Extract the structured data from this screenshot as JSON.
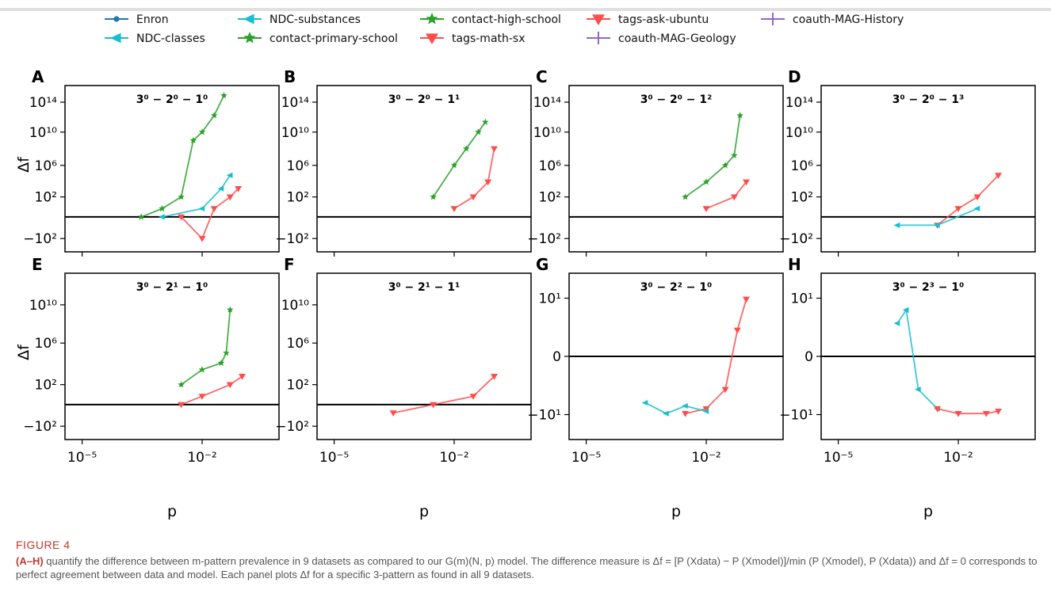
{
  "figure": {
    "label": "FIGURE 4",
    "caption_lead": "(A–H)",
    "caption_text": "quantify the difference between m-pattern prevalence in 9 datasets as compared to our G(m)(N, p) model. The difference measure is Δf = [P (Xdata) − P (Xmodel)]/min (P (Xmodel), P (Xdata)) and Δf = 0 corresponds to perfect agreement between data and model. Each panel plots Δf for a specific 3-pattern as found in all 9 datasets."
  },
  "legend": [
    {
      "name": "Enron",
      "color": "#1f77b4",
      "marker": "circle"
    },
    {
      "name": "NDC-classes",
      "color": "#17becf",
      "marker": "triangle-left"
    },
    {
      "name": "NDC-substances",
      "color": "#17becf",
      "marker": "triangle-left"
    },
    {
      "name": "contact-primary-school",
      "color": "#2ca02c",
      "marker": "star"
    },
    {
      "name": "contact-high-school",
      "color": "#2ca02c",
      "marker": "star"
    },
    {
      "name": "tags-math-sx",
      "color": "#ff4d4d",
      "marker": "triangle-down"
    },
    {
      "name": "tags-ask-ubuntu",
      "color": "#ff4d4d",
      "marker": "triangle-down"
    },
    {
      "name": "coauth-MAG-Geology",
      "color": "#9467bd",
      "marker": "plus"
    },
    {
      "name": "coauth-MAG-History",
      "color": "#9467bd",
      "marker": "plus"
    }
  ],
  "axis_labels": {
    "x": "p",
    "y": "Δf"
  },
  "chart_data": [
    {
      "type": "line",
      "panel": "A",
      "pattern": "3⁰ − 2⁰ − 1⁰",
      "y_scale": "symlog",
      "yticks": [
        "10¹⁴",
        "10¹⁰",
        "10⁶",
        "10²",
        "−10²"
      ],
      "xticks": [],
      "series": [
        {
          "name": "contact-high-school",
          "x": [
            0.0003,
            0.001,
            0.003,
            0.006,
            0.01,
            0.02,
            0.035
          ],
          "y": [
            "~0",
            "1e1",
            "1e2",
            "1e9",
            "1e10",
            "1e12",
            "1e15"
          ]
        },
        {
          "name": "tags-ask-ubuntu",
          "x": [
            0.003,
            0.01,
            0.02,
            0.05,
            0.08
          ],
          "y": [
            "~0",
            "-1e2",
            "1e1",
            "1e2",
            "1e3"
          ]
        },
        {
          "name": "NDC-substances",
          "x": [
            0.001,
            0.01,
            0.03,
            0.05
          ],
          "y": [
            "~0",
            "1e1",
            "1e3",
            "1e5"
          ]
        }
      ]
    },
    {
      "type": "line",
      "panel": "B",
      "pattern": "3⁰ − 2⁰ − 1¹",
      "y_scale": "symlog",
      "yticks": [
        "10¹⁴",
        "10¹⁰",
        "10⁶",
        "10²",
        "−10²"
      ],
      "xticks": [],
      "series": [
        {
          "name": "contact-high-school",
          "x": [
            0.003,
            0.01,
            0.02,
            0.04,
            0.06
          ],
          "y": [
            "1e2",
            "1e6",
            "1e8",
            "1e10",
            "1e11"
          ]
        },
        {
          "name": "tags-ask-ubuntu",
          "x": [
            0.01,
            0.03,
            0.07,
            0.1
          ],
          "y": [
            "1e1",
            "1e2",
            "1e4",
            "1e8"
          ]
        }
      ]
    },
    {
      "type": "line",
      "panel": "C",
      "pattern": "3⁰ − 2⁰ − 1²",
      "y_scale": "symlog",
      "yticks": [
        "10¹⁴",
        "10¹⁰",
        "10⁶",
        "10²",
        "−10²"
      ],
      "xticks": [],
      "series": [
        {
          "name": "contact-high-school",
          "x": [
            0.003,
            0.01,
            0.03,
            0.05,
            0.07
          ],
          "y": [
            "1e2",
            "1e4",
            "1e6",
            "1e7",
            "1e12"
          ]
        },
        {
          "name": "tags-ask-ubuntu",
          "x": [
            0.01,
            0.05,
            0.1
          ],
          "y": [
            "1e1",
            "1e2",
            "1e4"
          ]
        }
      ]
    },
    {
      "type": "line",
      "panel": "D",
      "pattern": "3⁰ − 2⁰ − 1³",
      "y_scale": "symlog",
      "yticks": [
        "10¹⁴",
        "10¹⁰",
        "10⁶",
        "10²",
        "−10²"
      ],
      "xticks": [],
      "series": [
        {
          "name": "tags-ask-ubuntu",
          "x": [
            0.003,
            0.01,
            0.03,
            0.1
          ],
          "y": [
            "-1e1",
            "1e1",
            "1e2",
            "1e5"
          ]
        },
        {
          "name": "NDC-substances",
          "x": [
            0.0003,
            0.003,
            0.03
          ],
          "y": [
            "-1e1",
            "-1e1",
            "1e1"
          ]
        }
      ]
    },
    {
      "type": "line",
      "panel": "E",
      "pattern": "3⁰ − 2¹ − 1⁰",
      "y_scale": "symlog",
      "yticks": [
        "10¹⁰",
        "10⁶",
        "10²",
        "−10²"
      ],
      "xticks": [
        "10⁻⁵",
        "10⁻²"
      ],
      "series": [
        {
          "name": "contact-high-school",
          "x": [
            0.003,
            0.01,
            0.03,
            0.04,
            0.05
          ],
          "y": [
            "1e2",
            "1e4",
            "1e5",
            "1e6",
            "1e11"
          ]
        },
        {
          "name": "tags-ask-ubuntu",
          "x": [
            0.003,
            0.01,
            0.05,
            0.1
          ],
          "y": [
            "~0",
            "1e1",
            "1e2",
            "1e3"
          ]
        }
      ]
    },
    {
      "type": "line",
      "panel": "F",
      "pattern": "3⁰ − 2¹ − 1¹",
      "y_scale": "symlog",
      "yticks": [
        "10¹⁰",
        "10⁶",
        "10²",
        "−10²"
      ],
      "xticks": [
        "10⁻⁵",
        "10⁻²"
      ],
      "series": [
        {
          "name": "tags-ask-ubuntu",
          "x": [
            0.0003,
            0.003,
            0.03,
            0.1
          ],
          "y": [
            "-1e1",
            "~0",
            "1e1",
            "1e3"
          ]
        }
      ]
    },
    {
      "type": "line",
      "panel": "G",
      "pattern": "3⁰ − 2² − 1⁰",
      "y_scale": "symlog",
      "yticks": [
        "10¹",
        "0",
        "−10¹"
      ],
      "xticks": [
        "10⁻⁵",
        "10⁻²"
      ],
      "series": [
        {
          "name": "tags-ask-ubuntu",
          "x": [
            0.003,
            0.01,
            0.03,
            0.06,
            0.1
          ],
          "y": [
            "-10",
            "-8",
            "-3",
            "2",
            "10"
          ]
        },
        {
          "name": "NDC-substances",
          "x": [
            0.0003,
            0.001,
            0.003,
            0.01
          ],
          "y": [
            "-6",
            "-10",
            "-7",
            "-9"
          ]
        }
      ]
    },
    {
      "type": "line",
      "panel": "H",
      "pattern": "3⁰ − 2³ − 1⁰",
      "y_scale": "symlog",
      "yticks": [
        "10¹",
        "0",
        "−10¹"
      ],
      "xticks": [
        "10⁻⁵",
        "10⁻²"
      ],
      "series": [
        {
          "name": "NDC-substances",
          "x": [
            0.0003,
            0.0005,
            0.001,
            0.003
          ],
          "y": [
            "3",
            "6",
            "-3",
            "-8"
          ]
        },
        {
          "name": "tags-ask-ubuntu",
          "x": [
            0.003,
            0.01,
            0.05,
            0.1
          ],
          "y": [
            "-8",
            "-10",
            "-10",
            "-9"
          ]
        }
      ]
    }
  ]
}
